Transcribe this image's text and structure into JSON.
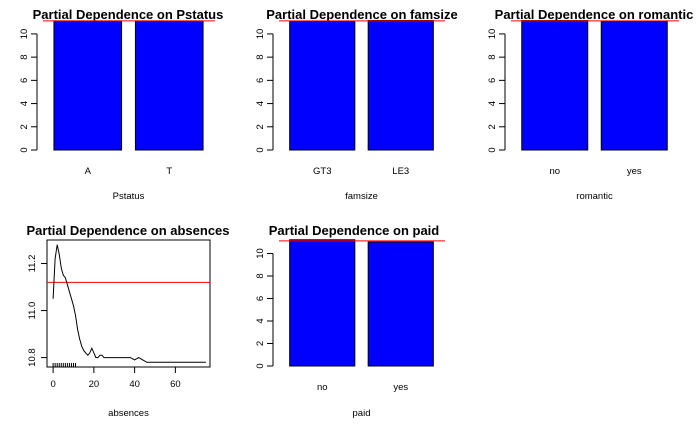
{
  "chart_data": [
    {
      "type": "bar",
      "title": "Partial Dependence on Pstatus",
      "xlabel": "Pstatus",
      "ylabel": "",
      "categories": [
        "A",
        "T"
      ],
      "values": [
        11.12,
        11.12
      ],
      "ylim": [
        0,
        11.2
      ],
      "yticks": [
        0,
        2,
        4,
        6,
        8,
        10
      ],
      "reference_line": 11.12,
      "bar_color": "#0000ff",
      "line_color": "#ff0000"
    },
    {
      "type": "bar",
      "title": "Partial Dependence on famsize",
      "xlabel": "famsize",
      "ylabel": "",
      "categories": [
        "GT3",
        "LE3"
      ],
      "values": [
        11.1,
        11.16
      ],
      "ylim": [
        0,
        11.2
      ],
      "yticks": [
        0,
        2,
        4,
        6,
        8,
        10
      ],
      "reference_line": 11.12,
      "bar_color": "#0000ff",
      "line_color": "#ff0000"
    },
    {
      "type": "bar",
      "title": "Partial Dependence on romantic",
      "xlabel": "romantic",
      "ylabel": "",
      "categories": [
        "no",
        "yes"
      ],
      "values": [
        11.15,
        11.06
      ],
      "ylim": [
        0,
        11.2
      ],
      "yticks": [
        0,
        2,
        4,
        6,
        8,
        10
      ],
      "reference_line": 11.12,
      "bar_color": "#0000ff",
      "line_color": "#ff0000"
    },
    {
      "type": "line",
      "title": "Partial Dependence on absences",
      "xlabel": "absences",
      "ylabel": "",
      "x": [
        0,
        1,
        2,
        3,
        4,
        5,
        6,
        7,
        8,
        9,
        10,
        11,
        12,
        13,
        14,
        15,
        16,
        17,
        18,
        19,
        20,
        21,
        22,
        23,
        24,
        25,
        26,
        28,
        30,
        32,
        35,
        38,
        40,
        42,
        44,
        46,
        50,
        55,
        60,
        65,
        70,
        75
      ],
      "y": [
        11.05,
        11.22,
        11.28,
        11.24,
        11.18,
        11.15,
        11.14,
        11.11,
        11.08,
        11.05,
        11.02,
        10.98,
        10.92,
        10.88,
        10.85,
        10.83,
        10.82,
        10.81,
        10.82,
        10.84,
        10.82,
        10.8,
        10.8,
        10.81,
        10.81,
        10.8,
        10.8,
        10.8,
        10.8,
        10.8,
        10.8,
        10.8,
        10.79,
        10.8,
        10.79,
        10.78,
        10.78,
        10.78,
        10.78,
        10.78,
        10.78,
        10.78
      ],
      "xlim": [
        -3,
        77
      ],
      "ylim": [
        10.76,
        11.3
      ],
      "xticks": [
        0,
        20,
        40,
        60
      ],
      "yticks": [
        10.8,
        11.0,
        11.2
      ],
      "reference_line": 11.12,
      "line_color": "#000000",
      "ref_color": "#ff0000"
    },
    {
      "type": "bar",
      "title": "Partial Dependence on paid",
      "xlabel": "paid",
      "ylabel": "",
      "categories": [
        "no",
        "yes"
      ],
      "values": [
        11.22,
        11.02
      ],
      "ylim": [
        0,
        11.2
      ],
      "yticks": [
        0,
        2,
        4,
        6,
        8,
        10
      ],
      "reference_line": 11.12,
      "bar_color": "#0000ff",
      "line_color": "#ff0000"
    }
  ]
}
